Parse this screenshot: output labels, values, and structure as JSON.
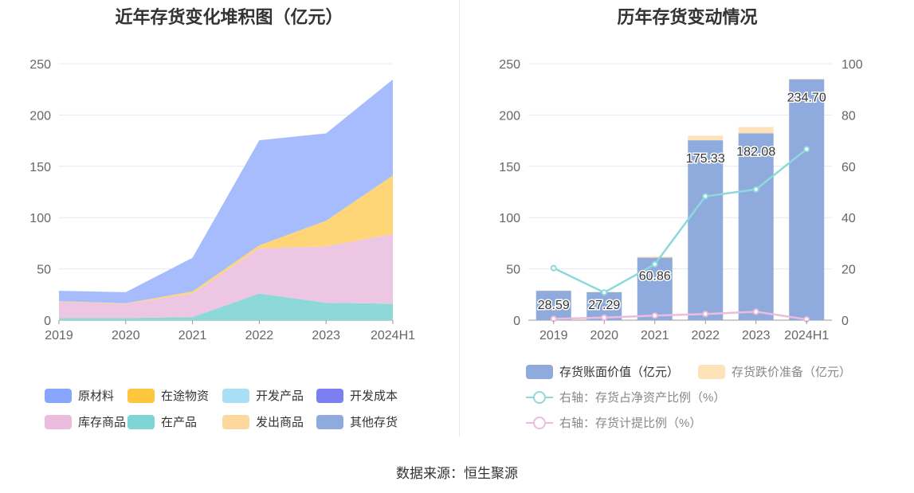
{
  "left_title": "近年存货变化堆积图（亿元）",
  "right_title": "历年存货变动情况",
  "source": "数据来源：恒生聚源",
  "chart_data": [
    {
      "type": "area",
      "stacked": true,
      "title": "近年存货变化堆积图（亿元）",
      "x": [
        "2019",
        "2020",
        "2021",
        "2022",
        "2023",
        "2024H1"
      ],
      "ylim": [
        0,
        250
      ],
      "yticks": [
        "0",
        "50",
        "100",
        "150",
        "200",
        "250"
      ],
      "grid": true,
      "legend_position": "bottom",
      "series": [
        {
          "name": "在产品",
          "color": "#8dd9da",
          "values": [
            2,
            2,
            3,
            26,
            17,
            16
          ]
        },
        {
          "name": "库存商品",
          "color": "#edc6e3",
          "values": [
            16,
            14,
            23,
            44,
            55,
            68
          ]
        },
        {
          "name": "在途物资",
          "color": "#fed678",
          "values": [
            0.5,
            0.5,
            2,
            3,
            25,
            57
          ]
        },
        {
          "name": "原材料",
          "color": "#a6bcfc",
          "values": [
            10.09,
            10.79,
            32.86,
            102.33,
            85.08,
            93.7
          ]
        },
        {
          "name": "开发产品",
          "color": "#a9def4",
          "values": [
            0,
            0,
            0,
            0,
            0,
            0
          ]
        },
        {
          "name": "开发成本",
          "color": "#7b7ff0",
          "values": [
            0,
            0,
            0,
            0,
            0,
            0
          ]
        },
        {
          "name": "发出商品",
          "color": "#fdd89d",
          "values": [
            0,
            0,
            0,
            0,
            0,
            0
          ]
        },
        {
          "name": "其他存货",
          "color": "#8faadc",
          "values": [
            0,
            0,
            0,
            0,
            0,
            0
          ]
        }
      ],
      "legend": [
        {
          "name": "原材料",
          "color": "#88a6fd"
        },
        {
          "name": "在途物资",
          "color": "#fec63d"
        },
        {
          "name": "开发产品",
          "color": "#a9def4"
        },
        {
          "name": "开发成本",
          "color": "#7b7ff0"
        },
        {
          "name": "库存商品",
          "color": "#ebbcdd"
        },
        {
          "name": "在产品",
          "color": "#7fd4d6"
        },
        {
          "name": "发出商品",
          "color": "#fdd89d"
        },
        {
          "name": "其他存货",
          "color": "#8faadc"
        }
      ]
    },
    {
      "type": "bar",
      "title": "历年存货变动情况",
      "categories": [
        "2019",
        "2020",
        "2021",
        "2022",
        "2023",
        "2024H1"
      ],
      "ylim": [
        0,
        250
      ],
      "y2lim": [
        0,
        100
      ],
      "yticks": [
        "0",
        "50",
        "100",
        "150",
        "200",
        "250"
      ],
      "y2ticks": [
        "0",
        "20",
        "40",
        "60",
        "80",
        "100"
      ],
      "grid": true,
      "legend_position": "bottom",
      "bar_series": [
        {
          "name": "存货账面价值（亿元）",
          "color": "#8faadc",
          "values": [
            28.59,
            27.29,
            60.86,
            175.33,
            182.08,
            234.7
          ],
          "labels": [
            "28.59",
            "27.29",
            "60.86",
            "175.33",
            "182.08",
            "234.70"
          ]
        },
        {
          "name": "存货跌价准备（亿元）",
          "color": "#fde2ba",
          "values": [
            0.3,
            0.3,
            1.2,
            4.5,
            6.2,
            0.6
          ]
        }
      ],
      "line_series": [
        {
          "name": "右轴：存货占净资产比例（%）",
          "color": "#8dd9da",
          "values": [
            20.3,
            10.8,
            21.8,
            48.3,
            51.0,
            66.7
          ]
        },
        {
          "name": "右轴：存货计提比例（%）",
          "color": "#edbcdd",
          "values": [
            0.5,
            1.0,
            1.8,
            2.4,
            3.3,
            0.3
          ]
        }
      ]
    }
  ]
}
